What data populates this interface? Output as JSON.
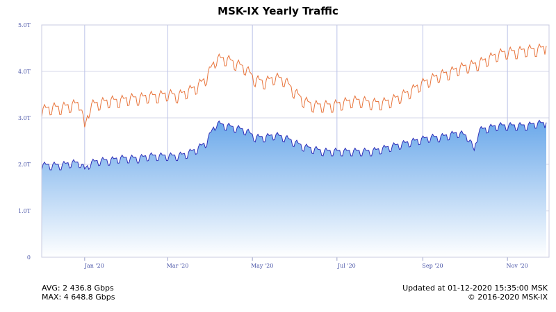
{
  "chart_data": {
    "type": "area",
    "title": "MSK-IX Yearly Traffic",
    "yticks": [
      {
        "value": 0,
        "label": "0"
      },
      {
        "value": 1.0,
        "label": "1.0T"
      },
      {
        "value": 2.0,
        "label": "2.0T"
      },
      {
        "value": 3.0,
        "label": "3.0T"
      },
      {
        "value": 4.0,
        "label": "4.0T"
      },
      {
        "value": 5.0,
        "label": "5.0T"
      }
    ],
    "ylim": [
      0,
      5.0
    ],
    "xlim": [
      "2019-12-01",
      "2020-12-01"
    ],
    "xticks": [
      {
        "value": "2020-01-01",
        "label": "Jan '20"
      },
      {
        "value": "2020-03-01",
        "label": "Mar '20"
      },
      {
        "value": "2020-05-01",
        "label": "May '20"
      },
      {
        "value": "2020-07-01",
        "label": "Jul '20"
      },
      {
        "value": "2020-09-01",
        "label": "Sep '20"
      },
      {
        "value": "2020-11-01",
        "label": "Nov '20"
      }
    ],
    "grid": true,
    "series": [
      {
        "kind": "line",
        "color": "#e8743b",
        "points": [
          [
            "2019-12-01",
            3.2
          ],
          [
            "2019-12-08",
            3.25
          ],
          [
            "2019-12-15",
            3.25
          ],
          [
            "2019-12-22",
            3.3
          ],
          [
            "2019-12-29",
            3.35
          ],
          [
            "2020-01-01",
            2.8
          ],
          [
            "2020-01-05",
            3.3
          ],
          [
            "2020-01-12",
            3.35
          ],
          [
            "2020-01-19",
            3.4
          ],
          [
            "2020-01-26",
            3.4
          ],
          [
            "2020-02-02",
            3.45
          ],
          [
            "2020-02-09",
            3.45
          ],
          [
            "2020-02-16",
            3.5
          ],
          [
            "2020-02-23",
            3.5
          ],
          [
            "2020-03-01",
            3.55
          ],
          [
            "2020-03-08",
            3.5
          ],
          [
            "2020-03-15",
            3.6
          ],
          [
            "2020-03-22",
            3.7
          ],
          [
            "2020-03-29",
            3.9
          ],
          [
            "2020-04-02",
            4.15
          ],
          [
            "2020-04-05",
            4.3
          ],
          [
            "2020-04-12",
            4.3
          ],
          [
            "2020-04-19",
            4.2
          ],
          [
            "2020-04-26",
            4.1
          ],
          [
            "2020-05-03",
            3.85
          ],
          [
            "2020-05-10",
            3.8
          ],
          [
            "2020-05-17",
            3.9
          ],
          [
            "2020-05-24",
            3.85
          ],
          [
            "2020-05-31",
            3.6
          ],
          [
            "2020-06-07",
            3.4
          ],
          [
            "2020-06-14",
            3.3
          ],
          [
            "2020-06-21",
            3.3
          ],
          [
            "2020-06-28",
            3.3
          ],
          [
            "2020-07-05",
            3.35
          ],
          [
            "2020-07-12",
            3.4
          ],
          [
            "2020-07-19",
            3.4
          ],
          [
            "2020-07-26",
            3.35
          ],
          [
            "2020-08-02",
            3.35
          ],
          [
            "2020-08-09",
            3.4
          ],
          [
            "2020-08-16",
            3.5
          ],
          [
            "2020-08-23",
            3.6
          ],
          [
            "2020-08-30",
            3.75
          ],
          [
            "2020-09-06",
            3.85
          ],
          [
            "2020-09-13",
            3.95
          ],
          [
            "2020-09-20",
            4.0
          ],
          [
            "2020-09-27",
            4.1
          ],
          [
            "2020-10-04",
            4.15
          ],
          [
            "2020-10-11",
            4.2
          ],
          [
            "2020-10-18",
            4.3
          ],
          [
            "2020-10-25",
            4.4
          ],
          [
            "2020-11-01",
            4.45
          ],
          [
            "2020-11-08",
            4.45
          ],
          [
            "2020-11-15",
            4.5
          ],
          [
            "2020-11-22",
            4.5
          ],
          [
            "2020-11-29",
            4.55
          ]
        ]
      },
      {
        "kind": "area",
        "color": "#2f2fb8",
        "fill_top": "#6aa8ea",
        "fill_bottom": "#ffffff",
        "points": [
          [
            "2019-12-01",
            2.0
          ],
          [
            "2019-12-08",
            2.0
          ],
          [
            "2019-12-15",
            2.0
          ],
          [
            "2019-12-22",
            2.05
          ],
          [
            "2019-12-29",
            2.05
          ],
          [
            "2020-01-01",
            1.9
          ],
          [
            "2020-01-05",
            2.05
          ],
          [
            "2020-01-12",
            2.1
          ],
          [
            "2020-01-19",
            2.1
          ],
          [
            "2020-01-26",
            2.15
          ],
          [
            "2020-02-02",
            2.15
          ],
          [
            "2020-02-09",
            2.15
          ],
          [
            "2020-02-16",
            2.2
          ],
          [
            "2020-02-23",
            2.2
          ],
          [
            "2020-03-01",
            2.2
          ],
          [
            "2020-03-08",
            2.2
          ],
          [
            "2020-03-15",
            2.25
          ],
          [
            "2020-03-22",
            2.35
          ],
          [
            "2020-03-29",
            2.5
          ],
          [
            "2020-04-02",
            2.75
          ],
          [
            "2020-04-05",
            2.9
          ],
          [
            "2020-04-12",
            2.85
          ],
          [
            "2020-04-19",
            2.8
          ],
          [
            "2020-04-26",
            2.75
          ],
          [
            "2020-05-03",
            2.6
          ],
          [
            "2020-05-10",
            2.6
          ],
          [
            "2020-05-17",
            2.65
          ],
          [
            "2020-05-24",
            2.6
          ],
          [
            "2020-05-31",
            2.5
          ],
          [
            "2020-06-07",
            2.4
          ],
          [
            "2020-06-14",
            2.35
          ],
          [
            "2020-06-21",
            2.3
          ],
          [
            "2020-06-28",
            2.3
          ],
          [
            "2020-07-05",
            2.3
          ],
          [
            "2020-07-12",
            2.3
          ],
          [
            "2020-07-19",
            2.3
          ],
          [
            "2020-07-26",
            2.3
          ],
          [
            "2020-08-02",
            2.35
          ],
          [
            "2020-08-09",
            2.4
          ],
          [
            "2020-08-16",
            2.45
          ],
          [
            "2020-08-23",
            2.5
          ],
          [
            "2020-08-30",
            2.55
          ],
          [
            "2020-09-06",
            2.6
          ],
          [
            "2020-09-13",
            2.6
          ],
          [
            "2020-09-20",
            2.65
          ],
          [
            "2020-09-27",
            2.7
          ],
          [
            "2020-10-04",
            2.6
          ],
          [
            "2020-10-08",
            2.3
          ],
          [
            "2020-10-11",
            2.75
          ],
          [
            "2020-10-18",
            2.8
          ],
          [
            "2020-10-25",
            2.85
          ],
          [
            "2020-11-01",
            2.85
          ],
          [
            "2020-11-08",
            2.85
          ],
          [
            "2020-11-15",
            2.85
          ],
          [
            "2020-11-22",
            2.9
          ],
          [
            "2020-11-29",
            2.9
          ]
        ]
      }
    ]
  },
  "footer": {
    "avg": "AVG: 2 436.8 Gbps",
    "max": "MAX: 4 648.8 Gbps",
    "updated": "Updated at 01-12-2020 15:35:00 MSK",
    "copyright": "© 2016-2020 MSK-IX"
  }
}
